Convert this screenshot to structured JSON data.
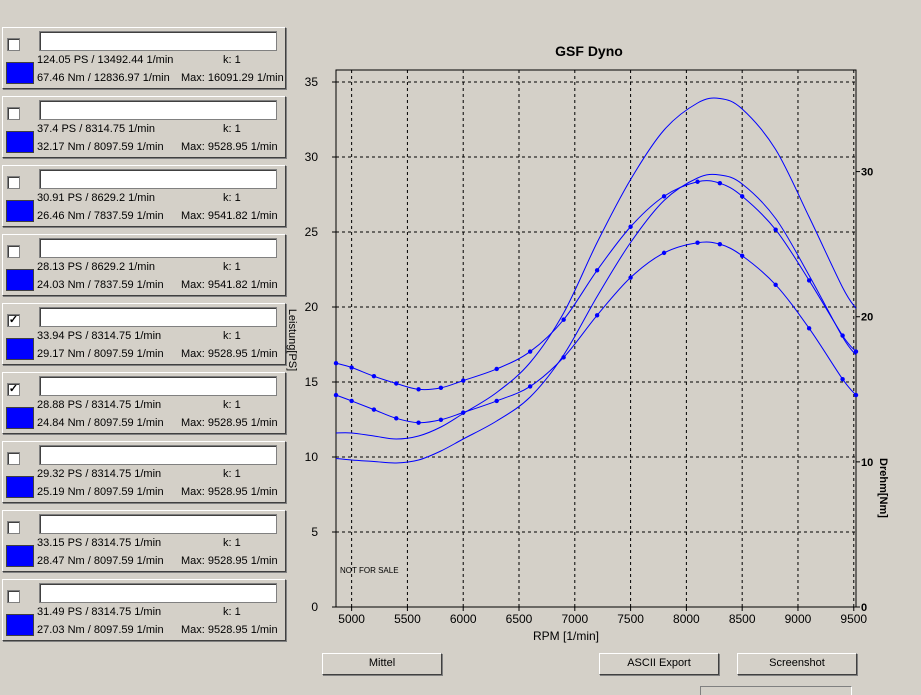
{
  "runs": [
    {
      "checked": false,
      "name": "",
      "power": "124.05 PS / 13492.44 1/min",
      "k": "k: 1",
      "torque": "67.46 Nm / 12836.97 1/min",
      "max": "Max: 16091.29 1/min",
      "color": "#0000ff"
    },
    {
      "checked": false,
      "name": "",
      "power": "37.4 PS / 8314.75 1/min",
      "k": "k: 1",
      "torque": "32.17 Nm / 8097.59 1/min",
      "max": "Max: 9528.95 1/min",
      "color": "#0000ff"
    },
    {
      "checked": false,
      "name": "",
      "power": "30.91 PS / 8629.2 1/min",
      "k": "k: 1",
      "torque": "26.46 Nm / 7837.59 1/min",
      "max": "Max: 9541.82 1/min",
      "color": "#0000ff"
    },
    {
      "checked": false,
      "name": "",
      "power": "28.13 PS / 8629.2 1/min",
      "k": "k: 1",
      "torque": "24.03 Nm / 7837.59 1/min",
      "max": "Max: 9541.82 1/min",
      "color": "#0000ff"
    },
    {
      "checked": true,
      "name": "",
      "power": "33.94 PS / 8314.75 1/min",
      "k": "k: 1",
      "torque": "29.17 Nm / 8097.59 1/min",
      "max": "Max: 9528.95 1/min",
      "color": "#0000ff"
    },
    {
      "checked": true,
      "name": "",
      "power": "28.88 PS / 8314.75 1/min",
      "k": "k: 1",
      "torque": "24.84 Nm / 8097.59 1/min",
      "max": "Max: 9528.95 1/min",
      "color": "#0000ff"
    },
    {
      "checked": false,
      "name": "",
      "power": "29.32 PS / 8314.75 1/min",
      "k": "k: 1",
      "torque": "25.19 Nm / 8097.59 1/min",
      "max": "Max: 9528.95 1/min",
      "color": "#0000ff"
    },
    {
      "checked": false,
      "name": "",
      "power": "33.15 PS / 8314.75 1/min",
      "k": "k: 1",
      "torque": "28.47 Nm / 8097.59 1/min",
      "max": "Max: 9528.95 1/min",
      "color": "#0000ff"
    },
    {
      "checked": false,
      "name": "",
      "power": "31.49 PS / 8314.75 1/min",
      "k": "k: 1",
      "torque": "27.03 Nm / 8097.59 1/min",
      "max": "Max: 9528.95 1/min",
      "color": "#0000ff"
    }
  ],
  "buttons": {
    "mittel": "Mittel",
    "ascii_export": "ASCII Export",
    "screenshot": "Screenshot"
  },
  "chart_data": {
    "type": "line",
    "title": "GSF Dyno",
    "xlabel": "RPM [1/min]",
    "ylabel": "Leistung[PS]",
    "y2label": "Drehm[Nm]",
    "annotation": "NOT FOR SALE",
    "xlim": [
      4860,
      9520
    ],
    "ylim": [
      0,
      35.8
    ],
    "y2lim": [
      0,
      37
    ],
    "x_ticks": [
      5000,
      5500,
      6000,
      6500,
      7000,
      7500,
      8000,
      8500,
      9000,
      9500
    ],
    "y_ticks": [
      0,
      5,
      10,
      15,
      20,
      25,
      30,
      35
    ],
    "y2_ticks": [
      0,
      10,
      20,
      30
    ],
    "grid": true,
    "line_color": "#0000ff",
    "series": [
      {
        "axis": "left",
        "markers": false,
        "x": [
          4860,
          5000,
          5200,
          5400,
          5600,
          5800,
          6000,
          6300,
          6600,
          6900,
          7200,
          7500,
          7800,
          8100,
          8300,
          8500,
          8800,
          9100,
          9400,
          9520
        ],
        "y": [
          11.6,
          11.6,
          11.4,
          11.2,
          11.4,
          12.0,
          12.9,
          14.3,
          16.3,
          19.6,
          24.3,
          28.5,
          31.8,
          33.6,
          33.9,
          33.2,
          30.5,
          26.0,
          21.3,
          19.9
        ]
      },
      {
        "axis": "left",
        "markers": false,
        "x": [
          4860,
          5000,
          5200,
          5400,
          5600,
          5800,
          6000,
          6300,
          6600,
          6900,
          7200,
          7500,
          7800,
          8100,
          8300,
          8500,
          8800,
          9100,
          9400,
          9520
        ],
        "y": [
          9.9,
          9.8,
          9.7,
          9.6,
          9.8,
          10.4,
          11.2,
          12.4,
          14.0,
          16.8,
          20.7,
          24.3,
          27.1,
          28.6,
          28.8,
          28.2,
          25.9,
          22.1,
          18.0,
          16.8
        ]
      },
      {
        "axis": "right",
        "markers": true,
        "x": [
          4860,
          5000,
          5200,
          5400,
          5600,
          5800,
          6000,
          6300,
          6600,
          6900,
          7200,
          7500,
          7800,
          8100,
          8300,
          8500,
          8800,
          9100,
          9400,
          9520
        ],
        "y": [
          16.8,
          16.5,
          15.9,
          15.4,
          15.0,
          15.1,
          15.6,
          16.4,
          17.6,
          19.8,
          23.2,
          26.2,
          28.3,
          29.3,
          29.2,
          28.3,
          26.0,
          22.5,
          18.7,
          17.6
        ]
      },
      {
        "axis": "right",
        "markers": true,
        "x": [
          4860,
          5000,
          5200,
          5400,
          5600,
          5800,
          6000,
          6300,
          6600,
          6900,
          7200,
          7500,
          7800,
          8100,
          8300,
          8500,
          8800,
          9100,
          9400,
          9520
        ],
        "y": [
          14.6,
          14.2,
          13.6,
          13.0,
          12.7,
          12.9,
          13.4,
          14.2,
          15.2,
          17.2,
          20.1,
          22.7,
          24.4,
          25.1,
          25.0,
          24.2,
          22.2,
          19.2,
          15.7,
          14.6
        ]
      }
    ]
  }
}
